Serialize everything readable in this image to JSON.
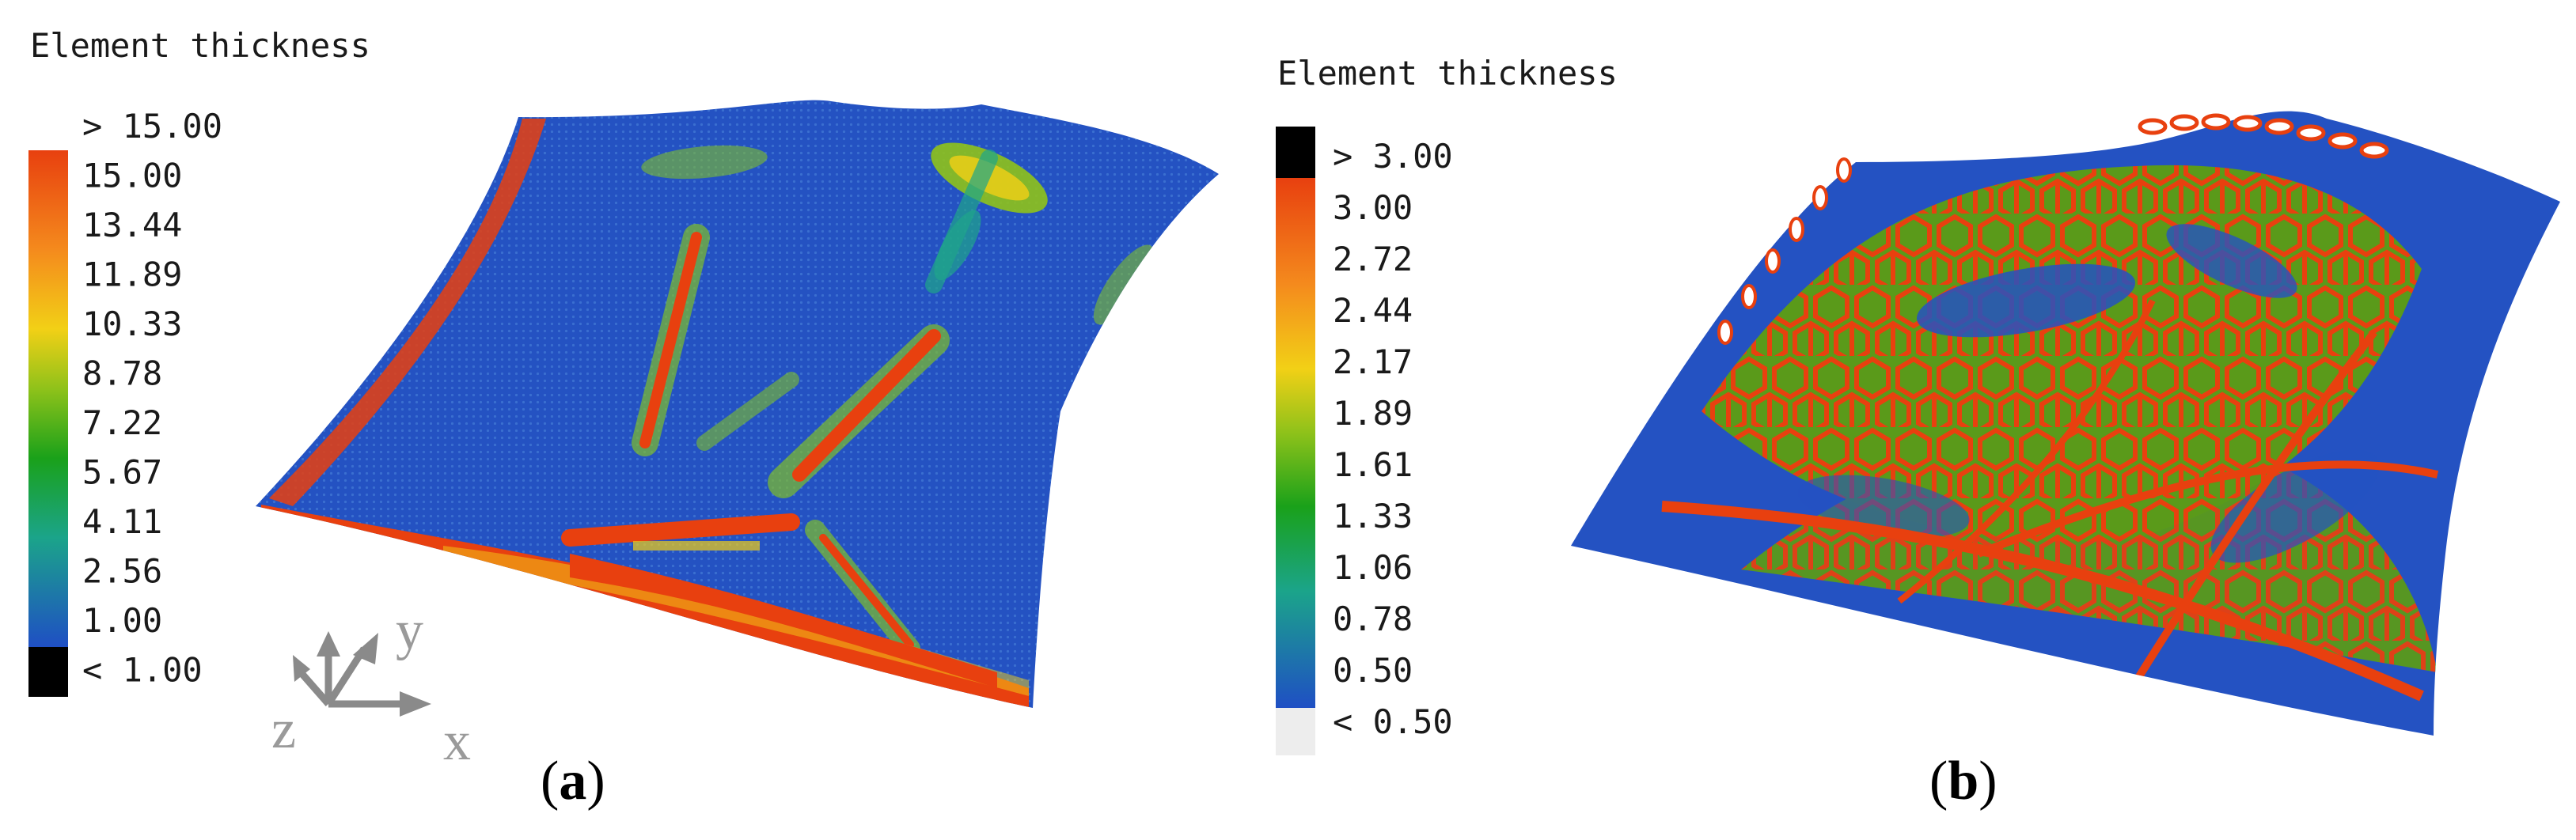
{
  "colors": {
    "blue": "#1f4fc4",
    "green": "#4e9a1c",
    "yellow": "#f2cf17",
    "orange": "#f3861f",
    "red": "#e8400f",
    "black": "#000000",
    "light_gray": "#ededed",
    "axis_gray": "#8a8a8a"
  },
  "panel_a": {
    "legend_title": "Element thickness",
    "legend_labels": [
      "> 15.00",
      "15.00",
      "13.44",
      "11.89",
      "10.33",
      "8.78",
      "7.22",
      "5.67",
      "4.11",
      "2.56",
      "1.00",
      "< 1.00"
    ],
    "caption": {
      "open": "(",
      "letter": "a",
      "close": ")"
    },
    "axes": {
      "x": "x",
      "y": "y",
      "z": "z"
    }
  },
  "panel_b": {
    "legend_title": "Element thickness",
    "legend_labels": [
      "> 3.00",
      "3.00",
      "2.72",
      "2.44",
      "2.17",
      "1.89",
      "1.61",
      "1.33",
      "1.06",
      "0.78",
      "0.50",
      "< 0.50"
    ],
    "caption": {
      "open": "(",
      "letter": "b",
      "close": ")"
    }
  }
}
